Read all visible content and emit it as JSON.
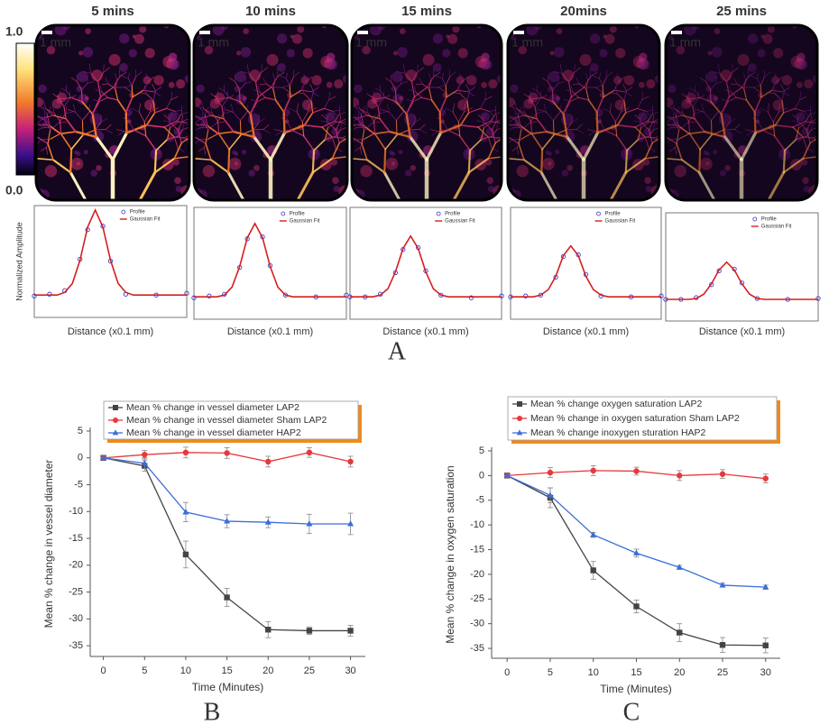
{
  "panel_labels": [
    "A",
    "B",
    "C"
  ],
  "images": {
    "colorbar_labels": [
      "1.0",
      "0.0"
    ],
    "scale_label": "1 mm",
    "titles": [
      "5 mins",
      "10 mins",
      "15 mins",
      "20mins",
      "25 mins"
    ]
  },
  "chart_data": [
    {
      "type": "profile",
      "x_label": "Distance (x0.1 mm)",
      "y_label": "Normalized Amplitude",
      "xlim": [
        0,
        1
      ],
      "ylim": [
        -0.2,
        1.05
      ],
      "series": [
        {
          "name": "Profile",
          "color": "#3c3cd0",
          "marker": "circle",
          "line": false,
          "x": [
            0,
            0.1,
            0.2,
            0.3,
            0.35,
            0.45,
            0.5,
            0.6,
            0.8,
            1.0
          ],
          "values": [
            0.04,
            0.06,
            0.1,
            0.45,
            0.78,
            0.82,
            0.43,
            0.06,
            0.05,
            0.07
          ]
        },
        {
          "name": "Gaussian Fit",
          "color": "#d42020",
          "marker": "none",
          "line": true,
          "x": [
            0,
            0.05,
            0.1,
            0.15,
            0.2,
            0.25,
            0.3,
            0.35,
            0.4,
            0.45,
            0.5,
            0.55,
            0.6,
            0.65,
            0.7,
            0.75,
            0.8,
            0.85,
            0.9,
            0.95,
            1.0
          ],
          "values": [
            0.05,
            0.05,
            0.05,
            0.05,
            0.08,
            0.18,
            0.44,
            0.81,
            1.0,
            0.81,
            0.44,
            0.18,
            0.08,
            0.05,
            0.05,
            0.05,
            0.05,
            0.05,
            0.05,
            0.05,
            0.05
          ]
        }
      ]
    },
    {
      "type": "profile",
      "x_label": "Distance (x0.1 mm)",
      "xlim": [
        0,
        1
      ],
      "ylim": [
        -0.2,
        1.05
      ],
      "series": [
        {
          "name": "Profile",
          "color": "#3c3cd0",
          "marker": "circle",
          "line": false,
          "x": [
            0,
            0.1,
            0.2,
            0.3,
            0.35,
            0.45,
            0.5,
            0.6,
            0.8,
            1.0
          ],
          "values": [
            0.04,
            0.06,
            0.08,
            0.38,
            0.7,
            0.72,
            0.4,
            0.07,
            0.05,
            0.07
          ]
        },
        {
          "name": "Gaussian Fit",
          "color": "#d42020",
          "marker": "none",
          "line": true,
          "x": [
            0,
            0.05,
            0.1,
            0.15,
            0.2,
            0.25,
            0.3,
            0.35,
            0.4,
            0.45,
            0.5,
            0.55,
            0.6,
            0.65,
            0.7,
            0.75,
            0.8,
            0.85,
            0.9,
            0.95,
            1.0
          ],
          "values": [
            0.05,
            0.05,
            0.05,
            0.05,
            0.07,
            0.16,
            0.39,
            0.71,
            0.87,
            0.71,
            0.39,
            0.16,
            0.07,
            0.05,
            0.05,
            0.05,
            0.05,
            0.05,
            0.05,
            0.05,
            0.05
          ]
        }
      ]
    },
    {
      "type": "profile",
      "x_label": "Distance (x0.1 mm)",
      "xlim": [
        0,
        1
      ],
      "ylim": [
        -0.2,
        1.05
      ],
      "series": [
        {
          "name": "Profile",
          "color": "#3c3cd0",
          "marker": "circle",
          "line": false,
          "x": [
            0,
            0.1,
            0.2,
            0.3,
            0.35,
            0.45,
            0.5,
            0.6,
            0.8,
            1.0
          ],
          "values": [
            0.05,
            0.05,
            0.08,
            0.32,
            0.58,
            0.6,
            0.34,
            0.07,
            0.04,
            0.06
          ]
        },
        {
          "name": "Gaussian Fit",
          "color": "#d42020",
          "marker": "none",
          "line": true,
          "x": [
            0,
            0.05,
            0.1,
            0.15,
            0.2,
            0.25,
            0.3,
            0.35,
            0.4,
            0.45,
            0.5,
            0.55,
            0.6,
            0.65,
            0.7,
            0.75,
            0.8,
            0.85,
            0.9,
            0.95,
            1.0
          ],
          "values": [
            0.05,
            0.05,
            0.05,
            0.05,
            0.07,
            0.14,
            0.33,
            0.59,
            0.73,
            0.59,
            0.33,
            0.14,
            0.07,
            0.05,
            0.05,
            0.05,
            0.05,
            0.05,
            0.05,
            0.05,
            0.05
          ]
        }
      ]
    },
    {
      "type": "profile",
      "x_label": "Distance (x0.1 mm)",
      "xlim": [
        0,
        1
      ],
      "ylim": [
        -0.2,
        1.05
      ],
      "series": [
        {
          "name": "Profile",
          "color": "#3c3cd0",
          "marker": "circle",
          "line": false,
          "x": [
            0,
            0.1,
            0.2,
            0.3,
            0.35,
            0.45,
            0.5,
            0.6,
            0.8,
            1.0
          ],
          "values": [
            0.05,
            0.06,
            0.07,
            0.27,
            0.5,
            0.52,
            0.3,
            0.06,
            0.05,
            0.06
          ]
        },
        {
          "name": "Gaussian Fit",
          "color": "#d42020",
          "marker": "none",
          "line": true,
          "x": [
            0,
            0.05,
            0.1,
            0.15,
            0.2,
            0.25,
            0.3,
            0.35,
            0.4,
            0.45,
            0.5,
            0.55,
            0.6,
            0.65,
            0.7,
            0.75,
            0.8,
            0.85,
            0.9,
            0.95,
            1.0
          ],
          "values": [
            0.05,
            0.05,
            0.05,
            0.05,
            0.07,
            0.13,
            0.28,
            0.51,
            0.62,
            0.51,
            0.28,
            0.13,
            0.07,
            0.05,
            0.05,
            0.05,
            0.05,
            0.05,
            0.05,
            0.05,
            0.05
          ]
        }
      ]
    },
    {
      "type": "profile",
      "x_label": "Distance (x0.1 mm)",
      "xlim": [
        0,
        1
      ],
      "ylim": [
        -0.2,
        1.05
      ],
      "series": [
        {
          "name": "Profile",
          "color": "#3c3cd0",
          "marker": "circle",
          "line": false,
          "x": [
            0,
            0.1,
            0.2,
            0.3,
            0.35,
            0.45,
            0.5,
            0.6,
            0.8,
            1.0
          ],
          "values": [
            0.05,
            0.05,
            0.07,
            0.22,
            0.38,
            0.4,
            0.24,
            0.06,
            0.05,
            0.06
          ]
        },
        {
          "name": "Gaussian Fit",
          "color": "#d42020",
          "marker": "none",
          "line": true,
          "x": [
            0,
            0.05,
            0.1,
            0.15,
            0.2,
            0.25,
            0.3,
            0.35,
            0.4,
            0.45,
            0.5,
            0.55,
            0.6,
            0.65,
            0.7,
            0.75,
            0.8,
            0.85,
            0.9,
            0.95,
            1.0
          ],
          "values": [
            0.05,
            0.05,
            0.05,
            0.05,
            0.06,
            0.11,
            0.23,
            0.39,
            0.48,
            0.39,
            0.23,
            0.11,
            0.06,
            0.05,
            0.05,
            0.05,
            0.05,
            0.05,
            0.05,
            0.05,
            0.05
          ]
        }
      ]
    },
    {
      "type": "line",
      "x_label": "Time (Minutes)",
      "y_label": "Mean % change in vessel diameter",
      "legend": "top",
      "x": [
        0,
        5,
        10,
        15,
        20,
        25,
        30
      ],
      "xlim": [
        -1.6,
        31.8
      ],
      "xticks": [
        0,
        5,
        10,
        15,
        20,
        25,
        30
      ],
      "ylim": [
        -37,
        5
      ],
      "yticks": [
        5,
        0,
        -5,
        -10,
        -15,
        -20,
        -25,
        -30,
        -35
      ],
      "series": [
        {
          "name": "Mean % change in vessel diameter LAP2",
          "color": "#444444",
          "marker": "square",
          "values": [
            0,
            -1.5,
            -18,
            -26,
            -32,
            -32.2,
            -32.2
          ],
          "errors": [
            0,
            1,
            2.5,
            1.7,
            1.5,
            0.7,
            1
          ]
        },
        {
          "name": "Mean % change in vessel diameter Sham LAP2",
          "color": "#e8383d",
          "marker": "circle",
          "values": [
            0,
            0.6,
            1,
            0.9,
            -0.7,
            1,
            -0.7
          ],
          "errors": [
            0,
            0.8,
            1,
            1,
            1,
            0.9,
            1
          ]
        },
        {
          "name": "Mean % change in vessel diameter HAP2",
          "color": "#3a6fd8",
          "marker": "triangle",
          "values": [
            0,
            -1,
            -10.1,
            -11.8,
            -12,
            -12.3,
            -12.3
          ],
          "errors": [
            0,
            1,
            1.8,
            1.2,
            1,
            1.8,
            2
          ]
        }
      ]
    },
    {
      "type": "line",
      "x_label": "Time (Minutes)",
      "y_label": "Mean % change in oxygen saturation",
      "legend": "top",
      "x": [
        0,
        5,
        10,
        15,
        20,
        25,
        30
      ],
      "xlim": [
        -1.8,
        31.7
      ],
      "xticks": [
        0,
        5,
        10,
        15,
        20,
        25,
        30
      ],
      "ylim": [
        -37,
        5
      ],
      "yticks": [
        5,
        0,
        -5,
        -10,
        -15,
        -20,
        -25,
        -30,
        -35
      ],
      "series": [
        {
          "name": "Mean % change oxygen saturation LAP2",
          "color": "#444444",
          "marker": "square",
          "values": [
            0,
            -4.5,
            -19.2,
            -26.5,
            -31.8,
            -34.3,
            -34.4
          ],
          "errors": [
            0,
            2,
            1.8,
            1.3,
            1.8,
            1.5,
            1.5
          ]
        },
        {
          "name": "Mean % change in oxygen saturation Sham LAP2",
          "color": "#e8383d",
          "marker": "circle",
          "values": [
            0,
            0.6,
            1,
            0.9,
            0,
            0.3,
            -0.6
          ],
          "errors": [
            0,
            1,
            1,
            0.8,
            1,
            0.9,
            0.9
          ]
        },
        {
          "name": "Mean % change inoxygen sturation HAP2",
          "color": "#3a6fd8",
          "marker": "triangle",
          "values": [
            0,
            -4,
            -12,
            -15.7,
            -18.6,
            -22.2,
            -22.6
          ],
          "errors": [
            0,
            1.5,
            0.5,
            0.8,
            0.4,
            0.4,
            0.4
          ]
        }
      ]
    }
  ]
}
